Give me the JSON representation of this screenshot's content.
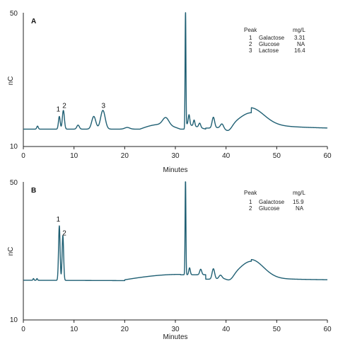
{
  "colors": {
    "trace": "#1f5f73",
    "axis": "#222222"
  },
  "chart_data": [
    {
      "type": "line",
      "panel_label": "A",
      "xlabel": "Minutes",
      "ylabel": "nC",
      "xlim": [
        0,
        60
      ],
      "ylim": [
        10,
        50
      ],
      "x_ticks": [
        "0",
        "10",
        "20",
        "30",
        "40",
        "50",
        "60"
      ],
      "y_ticks": [
        "10",
        "50"
      ],
      "baseline": 15.2,
      "peaks": [
        {
          "x": 2.8,
          "height": 0.9,
          "width": 0.15
        },
        {
          "x": 7.1,
          "height": 3.8,
          "width": 0.17
        },
        {
          "x": 7.9,
          "height": 5.6,
          "width": 0.2
        },
        {
          "x": 10.8,
          "height": 1.2,
          "width": 0.25
        },
        {
          "x": 13.9,
          "height": 3.8,
          "width": 0.4
        },
        {
          "x": 15.7,
          "height": 5.6,
          "width": 0.45
        },
        {
          "x": 20.5,
          "height": 0.5,
          "width": 0.5
        },
        {
          "x": 28.1,
          "height": 2.2,
          "width": 0.6
        },
        {
          "x": 32.0,
          "height": 35.0,
          "width": 0.08
        },
        {
          "x": 32.7,
          "height": 3.0,
          "width": 0.15
        },
        {
          "x": 33.7,
          "height": 1.8,
          "width": 0.15
        },
        {
          "x": 34.8,
          "height": 1.3,
          "width": 0.2
        },
        {
          "x": 37.5,
          "height": 3.2,
          "width": 0.25
        },
        {
          "x": 39.2,
          "height": 1.2,
          "width": 0.3
        }
      ],
      "peak_labels": [
        {
          "label": "1",
          "x": 6.9,
          "y": 20.5
        },
        {
          "label": "2",
          "x": 8.1,
          "y": 21.5
        },
        {
          "label": "3",
          "x": 15.8,
          "y": 21.5
        }
      ],
      "legend": {
        "headers": [
          "Peak",
          "",
          "mg/L"
        ],
        "rows": [
          [
            "1",
            "Galactose",
            "3.31"
          ],
          [
            "2",
            "Glucose",
            "NA"
          ],
          [
            "3",
            "Lactose",
            "16.4"
          ]
        ]
      }
    },
    {
      "type": "line",
      "panel_label": "B",
      "xlabel": "Minutes",
      "ylabel": "nC",
      "xlim": [
        0,
        60
      ],
      "ylim": [
        10,
        50
      ],
      "x_ticks": [
        "0",
        "10",
        "20",
        "30",
        "40",
        "50",
        "60"
      ],
      "y_ticks": [
        "10",
        "50"
      ],
      "baseline": 21.5,
      "peaks": [
        {
          "x": 2.0,
          "height": 0.5,
          "width": 0.1
        },
        {
          "x": 2.7,
          "height": 0.5,
          "width": 0.1
        },
        {
          "x": 7.1,
          "height": 15.8,
          "width": 0.15
        },
        {
          "x": 7.8,
          "height": 13.0,
          "width": 0.15
        },
        {
          "x": 32.0,
          "height": 28.0,
          "width": 0.08
        },
        {
          "x": 32.8,
          "height": 2.0,
          "width": 0.15
        },
        {
          "x": 35.0,
          "height": 1.6,
          "width": 0.2
        },
        {
          "x": 37.5,
          "height": 3.0,
          "width": 0.25
        },
        {
          "x": 38.9,
          "height": 1.0,
          "width": 0.3
        }
      ],
      "peak_labels": [
        {
          "label": "1",
          "x": 6.9,
          "y": 38.5
        },
        {
          "label": "2",
          "x": 8.1,
          "y": 34.5
        }
      ],
      "legend": {
        "headers": [
          "Peak",
          "",
          "mg/L"
        ],
        "rows": [
          [
            "1",
            "Galactose",
            "15.9"
          ],
          [
            "2",
            "Glucose",
            "NA"
          ]
        ]
      }
    }
  ]
}
